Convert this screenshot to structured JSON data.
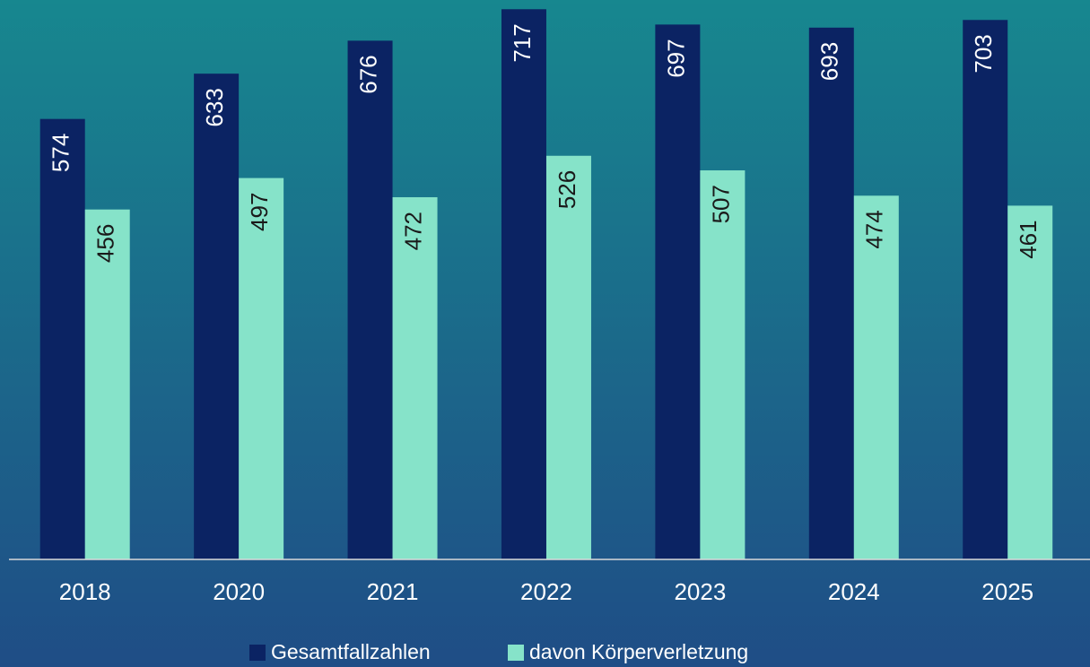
{
  "chart_data": {
    "type": "bar",
    "categories": [
      "2018",
      "2020",
      "2021",
      "2022",
      "2023",
      "2024",
      "2025"
    ],
    "series": [
      {
        "name": "Gesamtfallzahlen",
        "color": "#0b2363",
        "values": [
          574,
          633,
          676,
          717,
          697,
          693,
          703
        ]
      },
      {
        "name": "davon Körperverletzung",
        "color": "#86e3c9",
        "values": [
          456,
          497,
          472,
          526,
          507,
          474,
          461
        ]
      }
    ],
    "ylim": [
      0,
      729
    ]
  }
}
